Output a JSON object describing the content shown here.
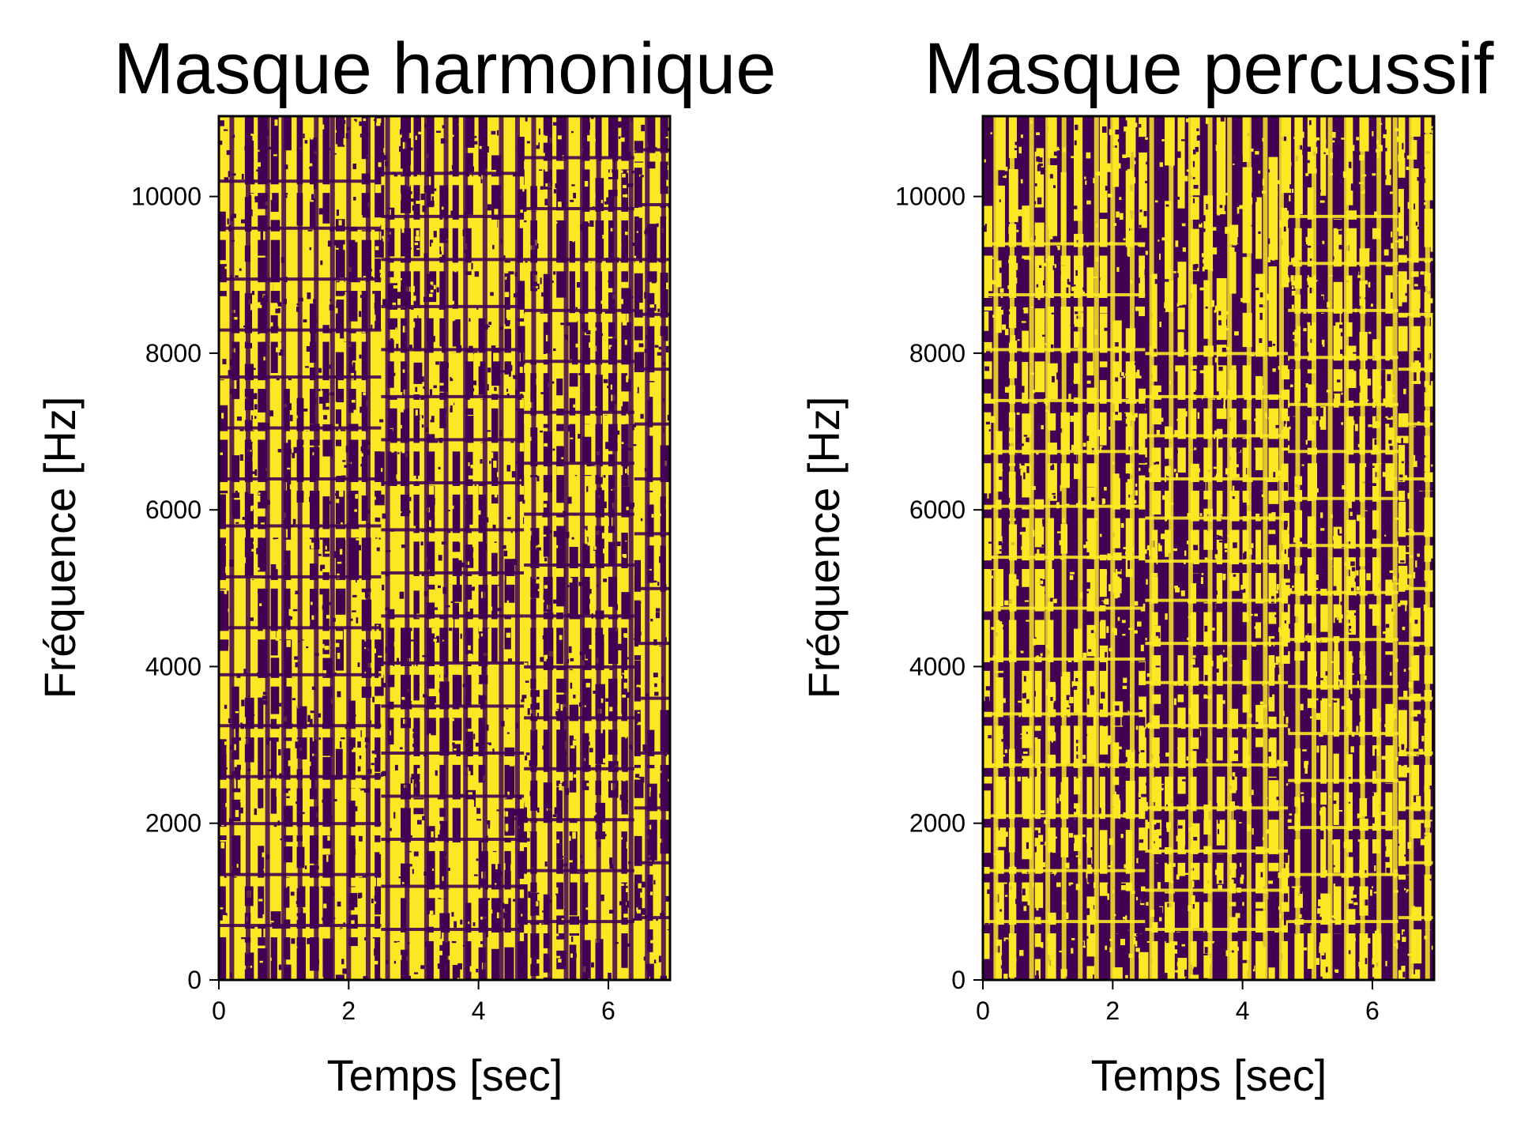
{
  "figure": {
    "colors": {
      "mask_on": "#fde725",
      "mask_off": "#440154",
      "background": "#ffffff",
      "axes": "#000000"
    }
  },
  "chart_data": [
    {
      "type": "heatmap",
      "title": "Masque harmonique",
      "xlabel": "Temps [sec]",
      "ylabel": "Fréquence [Hz]",
      "xlim": [
        0,
        6.95
      ],
      "ylim": [
        0,
        11025
      ],
      "xticks": [
        0,
        2,
        4,
        6
      ],
      "yticks": [
        0,
        2000,
        4000,
        6000,
        8000,
        10000
      ],
      "grid": false,
      "colormap": "viridis",
      "value_range": [
        0,
        1
      ],
      "segments": [
        {
          "t_start": 0.0,
          "t_end": 2.5,
          "partials_hz": [
            600,
            1250,
            1900,
            2500,
            3150,
            3800,
            4400,
            5050,
            5700,
            6300,
            6950,
            7600,
            8200,
            8850,
            9500,
            10100
          ]
        },
        {
          "t_start": 2.5,
          "t_end": 4.7,
          "partials_hz": [
            550,
            1100,
            1700,
            2250,
            2800,
            3400,
            3950,
            4550,
            5100,
            5650,
            6250,
            6800,
            7350,
            7950,
            8500,
            9100,
            9650,
            10200
          ]
        },
        {
          "t_start": 4.7,
          "t_end": 6.4,
          "partials_hz": [
            650,
            1300,
            1950,
            2600,
            3250,
            3900,
            4550,
            5200,
            5850,
            6500,
            7150,
            7800,
            8450,
            9100,
            9750,
            10400
          ]
        },
        {
          "t_start": 6.4,
          "t_end": 6.95,
          "partials_hz": [
            700,
            1400,
            2100,
            2800,
            3500,
            4200,
            4900,
            5600,
            6300,
            7000,
            7700,
            8400,
            9100,
            9800,
            10500
          ]
        }
      ],
      "onsets_sec": [
        0.2,
        0.45,
        0.75,
        1.0,
        1.25,
        1.5,
        1.75,
        2.0,
        2.3,
        2.6,
        2.9,
        3.2,
        3.5,
        3.8,
        4.1,
        4.35,
        4.6,
        4.85,
        5.1,
        5.35,
        5.6,
        5.85,
        6.1,
        6.35,
        6.6,
        6.85
      ]
    },
    {
      "type": "heatmap",
      "title": "Masque percussif",
      "xlabel": "Temps [sec]",
      "ylabel": "Fréquence [Hz]",
      "xlim": [
        0,
        6.95
      ],
      "ylim": [
        0,
        11025
      ],
      "xticks": [
        0,
        2,
        4,
        6
      ],
      "yticks": [
        0,
        2000,
        4000,
        6000,
        8000,
        10000
      ],
      "grid": false,
      "colormap": "viridis",
      "value_range": [
        0,
        1
      ],
      "segments": [
        {
          "t_start": 0.0,
          "t_end": 2.5,
          "partials_hz": [
            650,
            1300,
            2000,
            2650,
            3300,
            4000,
            4650,
            5300,
            5950,
            6650,
            7300,
            7950,
            8650,
            9300
          ]
        },
        {
          "t_start": 2.5,
          "t_end": 4.7,
          "partials_hz": [
            550,
            1050,
            1550,
            2100,
            2650,
            3150,
            3700,
            4200,
            4750,
            5250,
            5800,
            6300,
            6850,
            7350,
            7900
          ]
        },
        {
          "t_start": 4.7,
          "t_end": 6.4,
          "partials_hz": [
            650,
            1250,
            1850,
            2450,
            3050,
            3650,
            4250,
            4850,
            5450,
            6050,
            6650,
            7250,
            7850,
            8450,
            9050,
            9650
          ]
        },
        {
          "t_start": 6.4,
          "t_end": 6.95,
          "partials_hz": [
            700,
            1400,
            2100,
            2800,
            3500,
            4200,
            4900,
            5600,
            6300,
            7000,
            7700,
            8400,
            9100
          ]
        }
      ],
      "onsets_sec": [
        0.2,
        0.45,
        0.75,
        1.0,
        1.25,
        1.5,
        1.75,
        2.0,
        2.3,
        2.6,
        2.9,
        3.2,
        3.5,
        3.8,
        4.1,
        4.35,
        4.6,
        4.85,
        5.1,
        5.35,
        5.6,
        5.85,
        6.1,
        6.35,
        6.6,
        6.85
      ]
    }
  ]
}
